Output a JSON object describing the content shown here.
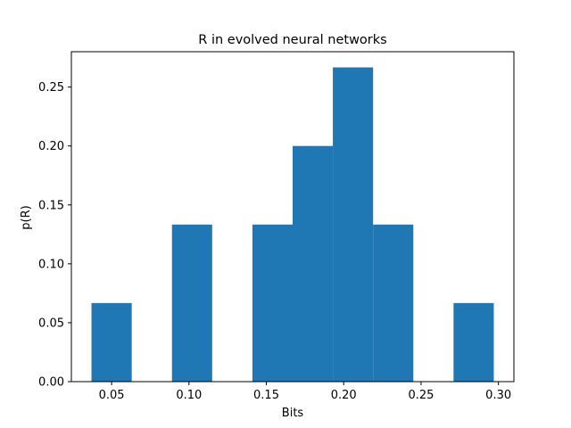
{
  "colors": {
    "bar": "#1f77b4",
    "axes": "#000000",
    "background": "#ffffff"
  },
  "chart_data": {
    "type": "bar",
    "title": "R in evolved neural networks",
    "xlabel": "Bits",
    "ylabel": "p(R)",
    "xlim": [
      0.024,
      0.31
    ],
    "ylim": [
      0.0,
      0.28
    ],
    "grid": false,
    "legend": "none",
    "bins": [
      {
        "x0": 0.037,
        "x1": 0.063,
        "value": 0.0667
      },
      {
        "x0": 0.063,
        "x1": 0.089,
        "value": 0.0
      },
      {
        "x0": 0.089,
        "x1": 0.115,
        "value": 0.1333
      },
      {
        "x0": 0.115,
        "x1": 0.141,
        "value": 0.0
      },
      {
        "x0": 0.141,
        "x1": 0.167,
        "value": 0.1333
      },
      {
        "x0": 0.167,
        "x1": 0.193,
        "value": 0.2
      },
      {
        "x0": 0.193,
        "x1": 0.219,
        "value": 0.2667
      },
      {
        "x0": 0.219,
        "x1": 0.245,
        "value": 0.1333
      },
      {
        "x0": 0.245,
        "x1": 0.271,
        "value": 0.0
      },
      {
        "x0": 0.271,
        "x1": 0.297,
        "value": 0.0667
      }
    ],
    "x_ticks": [
      {
        "value": 0.05,
        "label": "0.05"
      },
      {
        "value": 0.1,
        "label": "0.10"
      },
      {
        "value": 0.15,
        "label": "0.15"
      },
      {
        "value": 0.2,
        "label": "0.20"
      },
      {
        "value": 0.25,
        "label": "0.25"
      },
      {
        "value": 0.3,
        "label": "0.30"
      }
    ],
    "y_ticks": [
      {
        "value": 0.0,
        "label": "0.00"
      },
      {
        "value": 0.05,
        "label": "0.05"
      },
      {
        "value": 0.1,
        "label": "0.10"
      },
      {
        "value": 0.15,
        "label": "0.15"
      },
      {
        "value": 0.2,
        "label": "0.20"
      },
      {
        "value": 0.25,
        "label": "0.25"
      }
    ]
  }
}
